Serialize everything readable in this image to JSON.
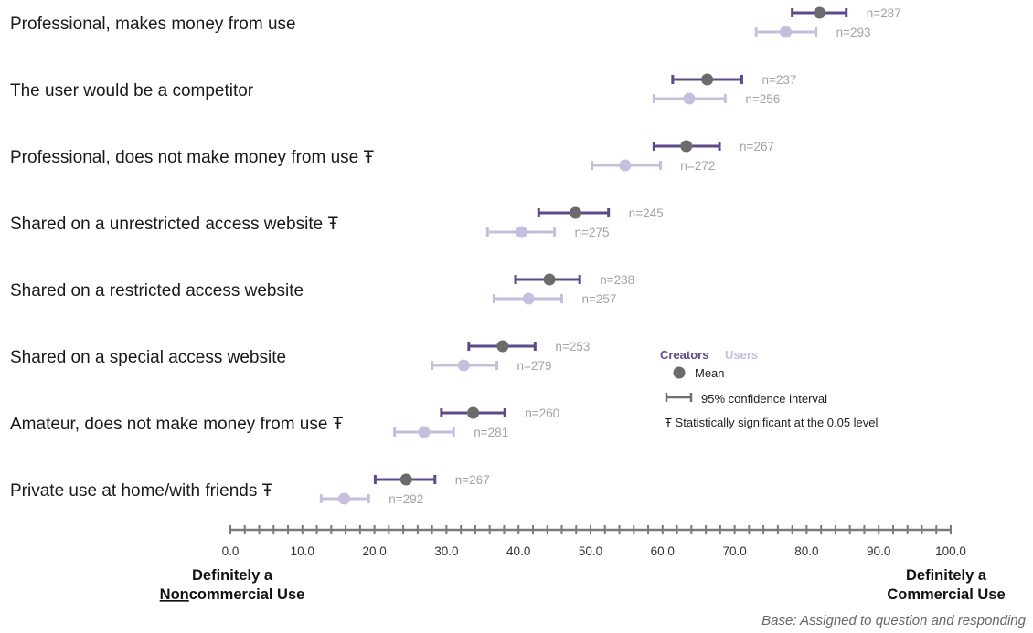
{
  "chart_data": {
    "type": "scatter",
    "xlim": [
      0,
      100
    ],
    "x_ticks": [
      "0.0",
      "10.0",
      "20.0",
      "30.0",
      "40.0",
      "50.0",
      "60.0",
      "70.0",
      "80.0",
      "90.0",
      "100.0"
    ],
    "x_minor_step": 2,
    "x_axis_left_label": [
      "Definitely a",
      "Noncommercial Use"
    ],
    "x_axis_left_label_underline": "Non",
    "x_axis_right_label": [
      "Definitely a",
      "Commercial Use"
    ],
    "categories": [
      "Professional, makes money from use",
      "The user would be a competitor",
      "Professional, does not make money from use Ŧ",
      "Shared on a unrestricted access website Ŧ",
      "Shared on a restricted access website",
      "Shared on a special access website",
      "Amateur, does not make money from use Ŧ",
      "Private use at home/with friends Ŧ"
    ],
    "series": [
      {
        "name": "Creators",
        "color": "#5e4a8b",
        "marker_color": "#6b6b6b",
        "mean": [
          81.8,
          66.2,
          63.3,
          47.9,
          44.3,
          37.8,
          33.7,
          24.4
        ],
        "ci_low": [
          78.0,
          61.4,
          58.8,
          42.8,
          39.6,
          33.1,
          29.3,
          20.1
        ],
        "ci_high": [
          85.5,
          71.0,
          67.9,
          52.5,
          48.5,
          42.3,
          38.1,
          28.4
        ],
        "n_labels": [
          "n=287",
          "n=237",
          "n=267",
          "n=245",
          "n=238",
          "n=253",
          "n=260",
          "n=267"
        ]
      },
      {
        "name": "Users",
        "color": "#c6bedd",
        "marker_color": "#c6bedd",
        "mean": [
          77.1,
          63.7,
          54.8,
          40.4,
          41.4,
          32.4,
          26.9,
          15.8
        ],
        "ci_low": [
          73.0,
          58.8,
          50.2,
          35.7,
          36.6,
          28.0,
          22.8,
          12.6
        ],
        "ci_high": [
          81.3,
          68.7,
          59.7,
          45.0,
          46.0,
          37.0,
          31.0,
          19.2
        ],
        "n_labels": [
          "n=293",
          "n=256",
          "n=272",
          "n=275",
          "n=257",
          "n=279",
          "n=281",
          "n=292"
        ]
      }
    ],
    "legend": {
      "placement": "center-right",
      "creators_label": "Creators",
      "users_label": "Users",
      "mean_label": "Mean",
      "ci_label": "95% confidence interval",
      "significance_label": "Ŧ Statistically significant at the 0.05 level"
    },
    "base_note": "Base: Assigned to question and responding"
  }
}
